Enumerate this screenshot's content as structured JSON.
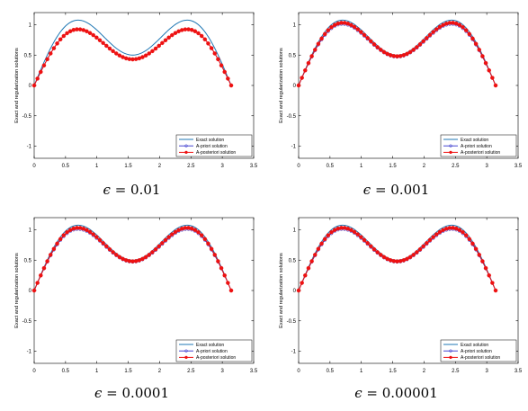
{
  "figure": {
    "ylabel": "Exact and regularization solutions",
    "x_ticks": [
      "0",
      "0.5",
      "1",
      "1.5",
      "2",
      "2.5",
      "3",
      "3.5"
    ],
    "y_ticks": [
      "-1",
      "-0.5",
      "0",
      "0.5",
      "1"
    ],
    "legend": [
      "Exact solution",
      "A-priori solution",
      "A-posteriori solution"
    ],
    "colors": {
      "exact": "#1f77b4",
      "apriori": "#3030cc",
      "aposteriori": "#ee1111"
    }
  },
  "chart_data": [
    {
      "type": "line",
      "caption_symbol": "ϵ",
      "caption_value": "= 0.01",
      "ylabel": "Exact and regularization solutions",
      "xlim": [
        0,
        3.5
      ],
      "ylim": [
        -1.2,
        1.2
      ],
      "legend_position": "bottom-right",
      "series": [
        {
          "name": "Exact solution",
          "function": "sin(x)+0.5*sin(3x)",
          "x_range": [
            0,
            3.1416
          ],
          "scale": 1.0
        },
        {
          "name": "A-priori solution",
          "x_range": [
            0,
            3.1416
          ],
          "scale": 0.86
        },
        {
          "name": "A-posteriori solution",
          "x_range": [
            0,
            3.1416
          ],
          "scale": 0.86
        }
      ]
    },
    {
      "type": "line",
      "caption_symbol": "ϵ",
      "caption_value": "= 0.001",
      "ylabel": "Exact and regularization solutions",
      "xlim": [
        0,
        3.5
      ],
      "ylim": [
        -1.2,
        1.2
      ],
      "legend_position": "bottom-right",
      "series": [
        {
          "name": "Exact solution",
          "function": "sin(x)+0.5*sin(3x)",
          "x_range": [
            0,
            3.1416
          ],
          "scale": 1.0
        },
        {
          "name": "A-priori solution",
          "x_range": [
            0,
            3.1416
          ],
          "scale": 0.94
        },
        {
          "name": "A-posteriori solution",
          "x_range": [
            0,
            3.1416
          ],
          "scale": 0.96
        }
      ]
    },
    {
      "type": "line",
      "caption_symbol": "ϵ",
      "caption_value": "= 0.0001",
      "ylabel": "Exact and regularization solutions",
      "xlim": [
        0,
        3.5
      ],
      "ylim": [
        -1.2,
        1.2
      ],
      "legend_position": "bottom-right",
      "series": [
        {
          "name": "Exact solution",
          "function": "sin(x)+0.5*sin(3x)",
          "x_range": [
            0,
            3.1416
          ],
          "scale": 1.0
        },
        {
          "name": "A-priori solution",
          "x_range": [
            0,
            3.1416
          ],
          "scale": 0.94
        },
        {
          "name": "A-posteriori solution",
          "x_range": [
            0,
            3.1416
          ],
          "scale": 0.96
        }
      ]
    },
    {
      "type": "line",
      "caption_symbol": "ϵ",
      "caption_value": "= 0.00001",
      "ylabel": "Exact and regularization solutions",
      "xlim": [
        0,
        3.5
      ],
      "ylim": [
        -1.2,
        1.2
      ],
      "legend_position": "bottom-right",
      "series": [
        {
          "name": "Exact solution",
          "function": "sin(x)+0.5*sin(3x)",
          "x_range": [
            0,
            3.1416
          ],
          "scale": 1.0
        },
        {
          "name": "A-priori solution",
          "x_range": [
            0,
            3.1416
          ],
          "scale": 0.94
        },
        {
          "name": "A-posteriori solution",
          "x_range": [
            0,
            3.1416
          ],
          "scale": 0.96
        }
      ]
    }
  ]
}
